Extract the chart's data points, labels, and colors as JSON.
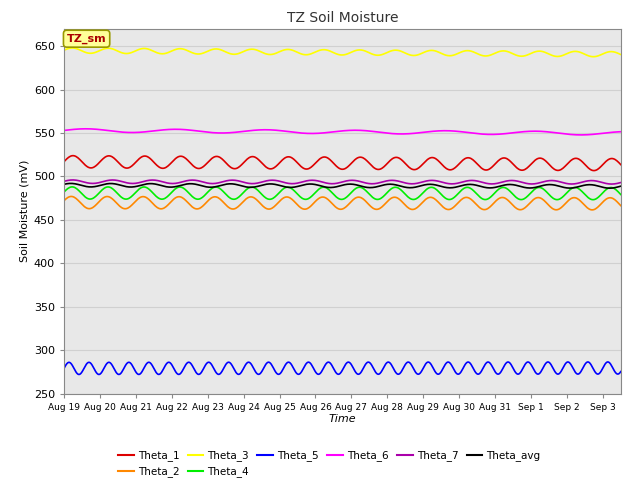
{
  "title": "TZ Soil Moisture",
  "xlabel": "Time",
  "ylabel": "Soil Moisture (mV)",
  "ylim": [
    250,
    670
  ],
  "xlim": [
    0,
    15.5
  ],
  "bg_color": "#e8e8e8",
  "fig_color": "#ffffff",
  "grid_color": "#d0d0d0",
  "series": [
    {
      "name": "Theta_1",
      "color": "#dd0000",
      "base": 517,
      "trend": -0.22,
      "amp": 7,
      "freq": 1.0,
      "phase": 0.0
    },
    {
      "name": "Theta_2",
      "color": "#ff8800",
      "base": 470,
      "trend": -0.1,
      "amp": 7,
      "freq": 1.0,
      "phase": 0.3
    },
    {
      "name": "Theta_3",
      "color": "#ffff00",
      "base": 645,
      "trend": -0.28,
      "amp": 3,
      "freq": 1.0,
      "phase": 0.1
    },
    {
      "name": "Theta_4",
      "color": "#00ee00",
      "base": 481,
      "trend": -0.05,
      "amp": 7,
      "freq": 1.0,
      "phase": 0.15
    },
    {
      "name": "Theta_5",
      "color": "#0000ff",
      "base": 279,
      "trend": 0.03,
      "amp": 7,
      "freq": 1.8,
      "phase": 0.0
    },
    {
      "name": "Theta_6",
      "color": "#ff00ff",
      "base": 553,
      "trend": -0.22,
      "amp": 2,
      "freq": 0.4,
      "phase": 0.0
    },
    {
      "name": "Theta_7",
      "color": "#aa00aa",
      "base": 494,
      "trend": -0.05,
      "amp": 2,
      "freq": 0.9,
      "phase": 0.2
    },
    {
      "name": "Theta_avg",
      "color": "#000000",
      "base": 490,
      "trend": -0.1,
      "amp": 2,
      "freq": 0.9,
      "phase": 0.5
    }
  ],
  "tick_labels": [
    "Aug 19",
    "Aug 20",
    "Aug 21",
    "Aug 22",
    "Aug 23",
    "Aug 24",
    "Aug 25",
    "Aug 26",
    "Aug 27",
    "Aug 28",
    "Aug 29",
    "Aug 30",
    "Aug 31",
    "Sep 1",
    "Sep 2",
    "Sep 3"
  ],
  "annotation_text": "TZ_sm",
  "annotation_color": "#aa0000",
  "annotation_bg": "#ffff99",
  "annotation_edge": "#999900"
}
